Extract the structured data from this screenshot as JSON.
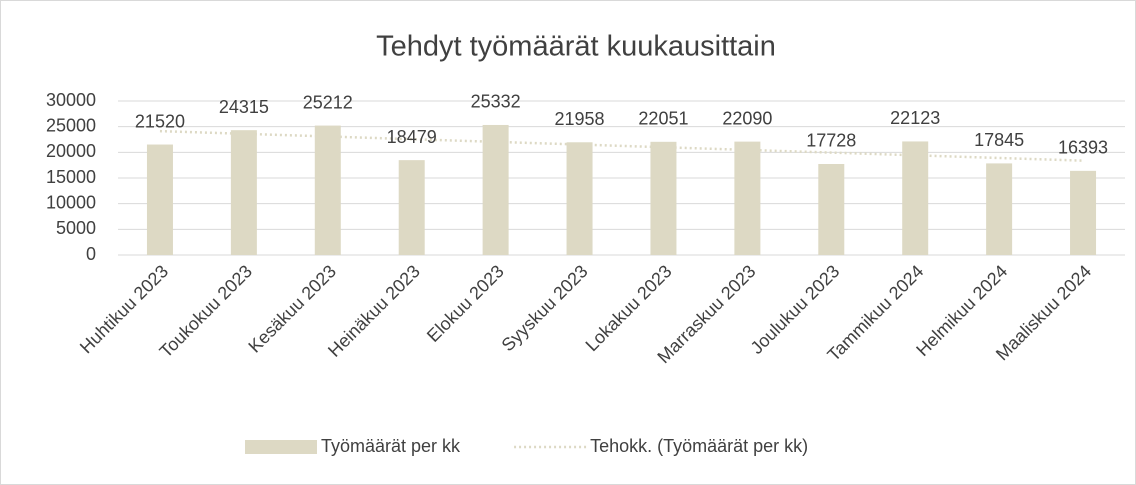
{
  "chart_data": {
    "type": "bar",
    "title": "Tehdyt työmäärät kuukausittain",
    "categories": [
      "Huhtikuu 2023",
      "Toukokuu 2023",
      "Kesäkuu 2023",
      "Heinäkuu 2023",
      "Elokuu 2023",
      "Syyskuu 2023",
      "Lokakuu 2023",
      "Marraskuu 2023",
      "Joulukuu 2023",
      "Tammikuu 2024",
      "Helmikuu 2024",
      "Maaliskuu 2024"
    ],
    "series": [
      {
        "name": "Työmäärät per kk",
        "color": "#ddd9c4",
        "type": "bar",
        "values": [
          21520,
          24315,
          25212,
          18479,
          25332,
          21958,
          22051,
          22090,
          17728,
          22123,
          17845,
          16393
        ]
      },
      {
        "name": "Tehokk. (Työmäärät per kk)",
        "color": "#ddd9c4",
        "type": "line",
        "dash": "dotted",
        "values": [
          24130,
          23610,
          23090,
          22560,
          22040,
          21520,
          20990,
          20470,
          19950,
          19420,
          18900,
          18380
        ]
      }
    ],
    "ylim": [
      0,
      30000
    ],
    "yticks": [
      0,
      5000,
      10000,
      15000,
      20000,
      25000,
      30000
    ],
    "grid": true,
    "legend": "bottom"
  }
}
